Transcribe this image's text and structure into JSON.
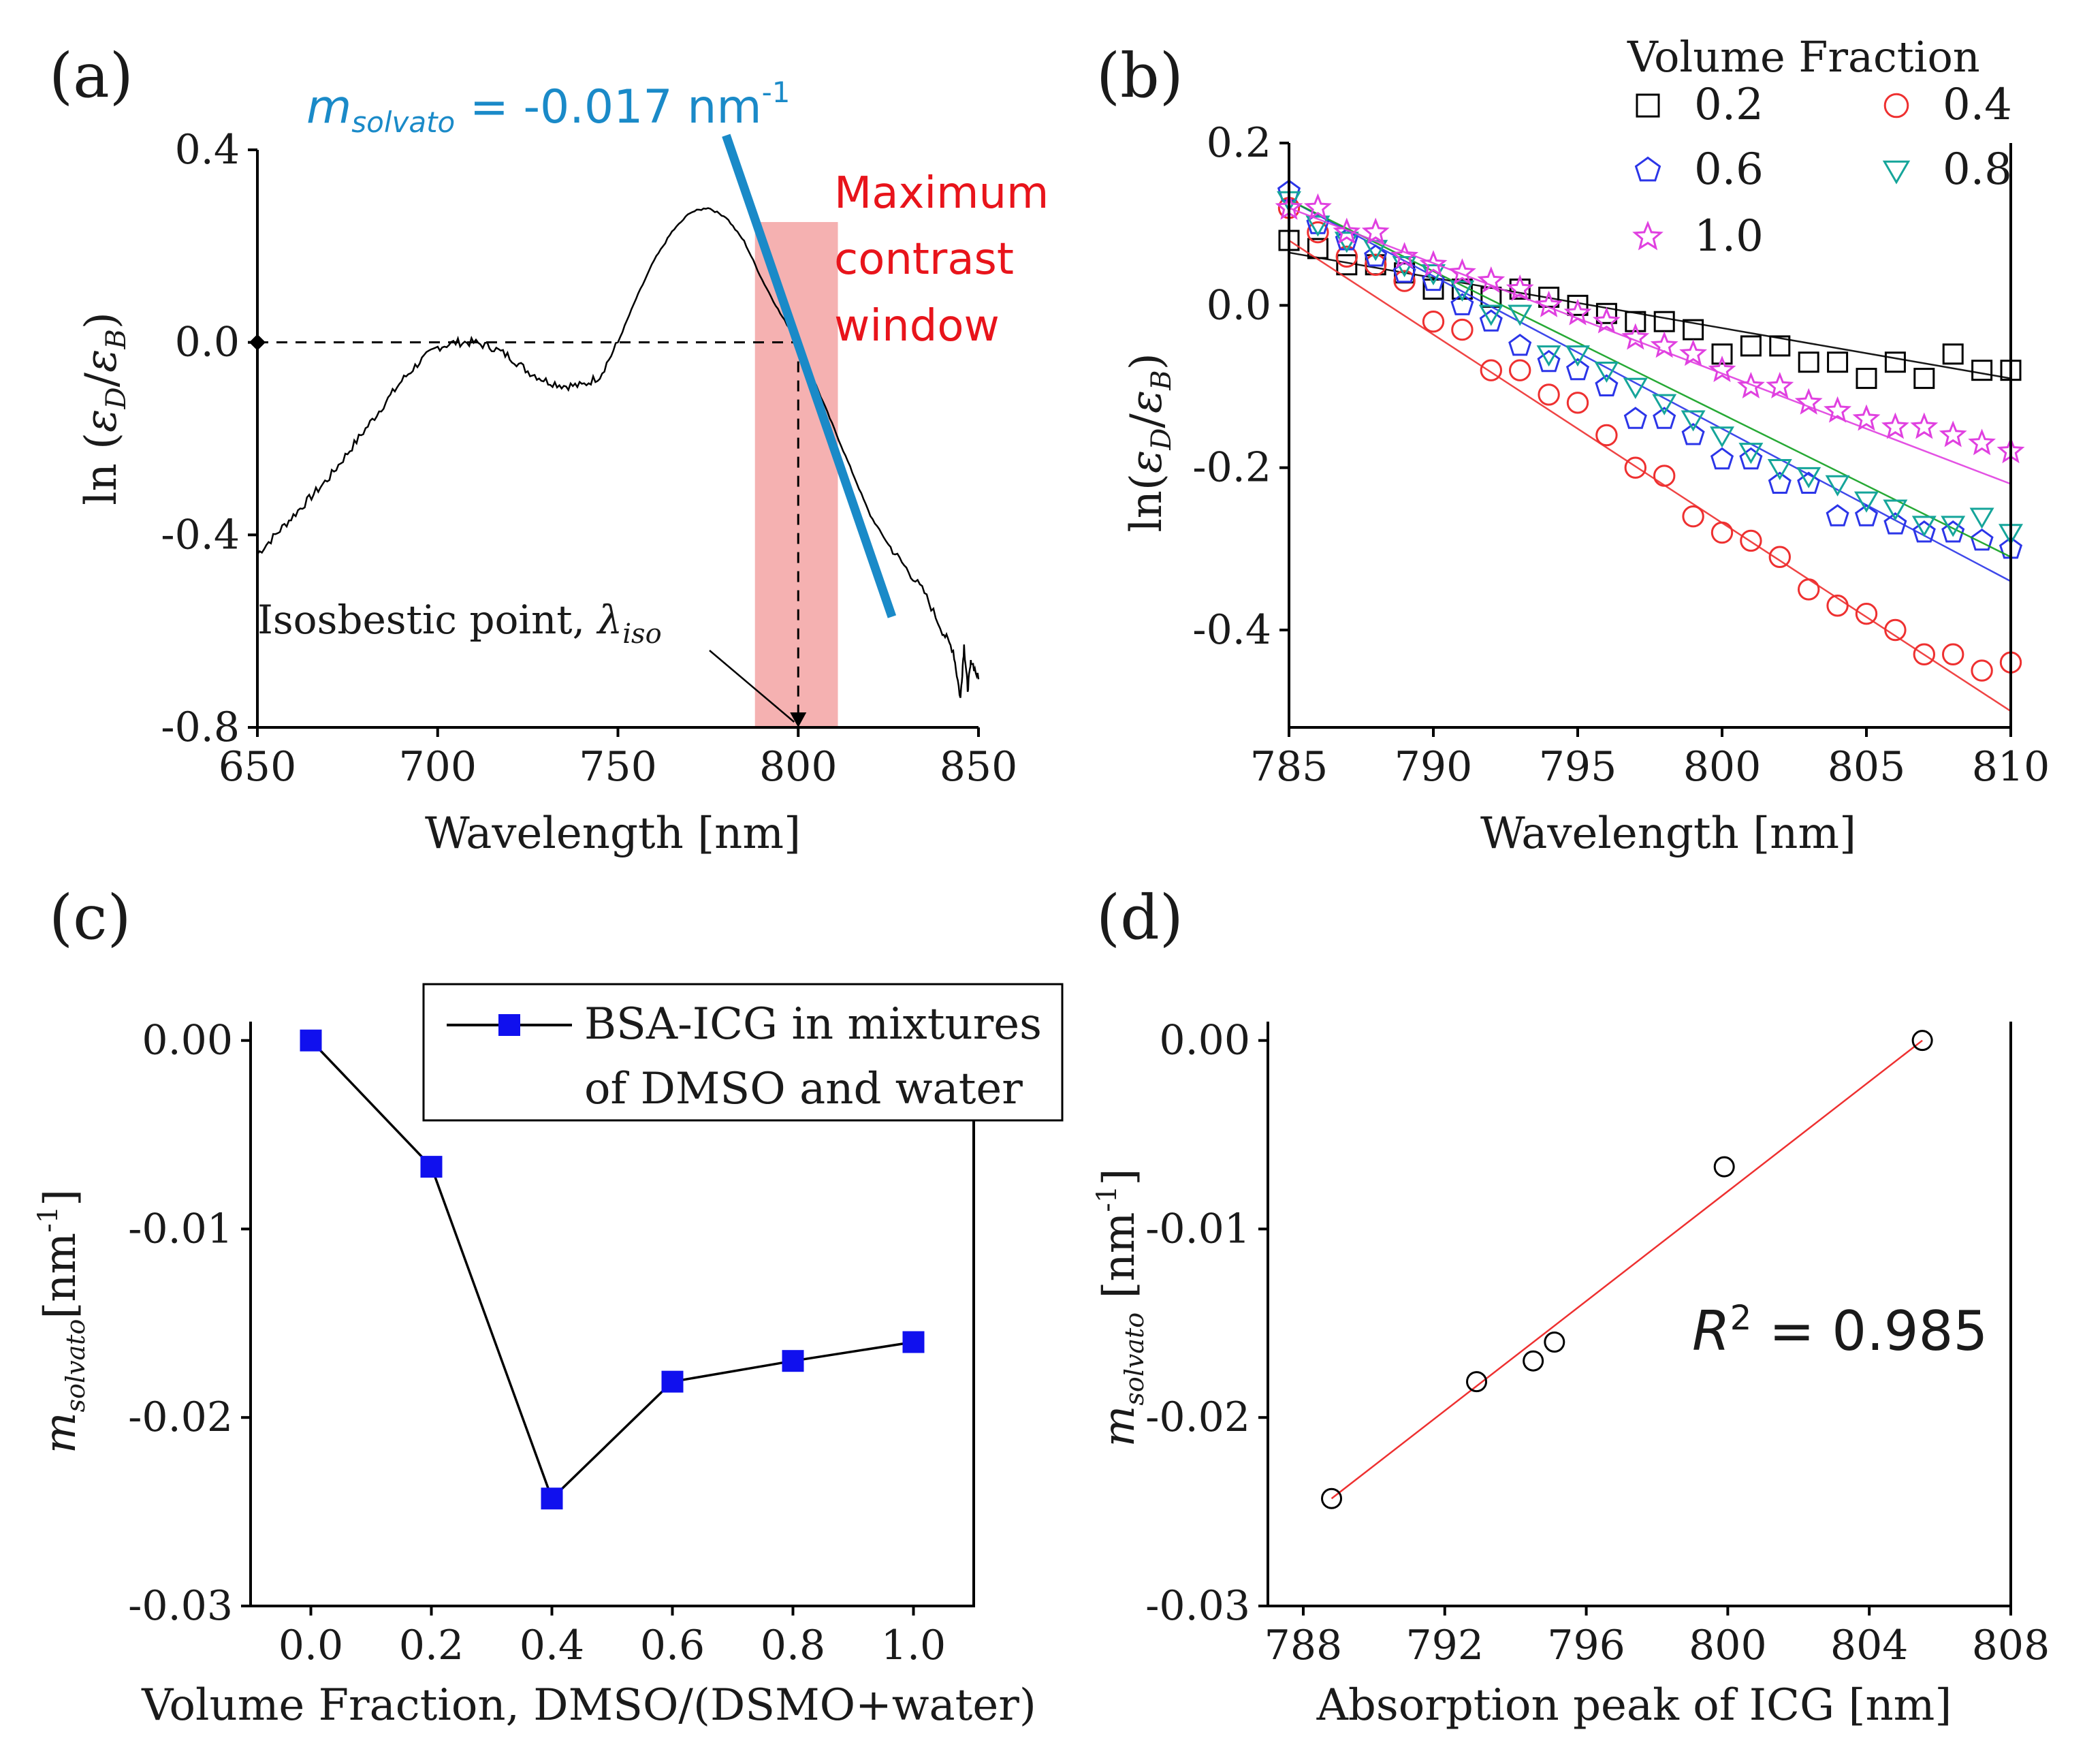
{
  "colors": {
    "axis": "#000000",
    "slope_line": "#1a8ac8",
    "window_fill": "#f3a3a3",
    "window_text": "#e8141b",
    "series_0_2": "#000000",
    "series_0_4": "#ee3030",
    "series_0_6": "#2b35e8",
    "series_0_8": "#15a59a",
    "series_1_0": "#e040e0",
    "fit_0_6": "#2b35e8",
    "fit_0_8": "#10a020",
    "marker_c": "#1010ee",
    "fit_d": "#ee3030"
  },
  "chart_data": [
    {
      "panel": "(a)",
      "type": "line",
      "xlabel": "Wavelength [nm]",
      "ylabel_main": "ln (",
      "ylabel_num": "ε",
      "ylabel_num_sub": "D",
      "ylabel_sep": "/",
      "ylabel_den": "ε",
      "ylabel_den_sub": "B",
      "ylabel_end": ")",
      "xlim": [
        650,
        850
      ],
      "ylim": [
        -0.8,
        0.4
      ],
      "xticks": [
        650,
        700,
        750,
        800,
        850
      ],
      "xtick_labels": [
        "650",
        "700",
        "750",
        "800",
        "850"
      ],
      "yticks": [
        -0.8,
        -0.4,
        0.0,
        0.4
      ],
      "ytick_labels": [
        "-0.8",
        "-0.4",
        "0.0",
        "0.4"
      ],
      "curve": {
        "x": [
          650,
          655,
          660,
          665,
          670,
          675,
          680,
          685,
          690,
          695,
          700,
          705,
          710,
          715,
          720,
          725,
          730,
          735,
          740,
          745,
          750,
          755,
          760,
          765,
          770,
          775,
          780,
          785,
          790,
          795,
          800,
          805,
          810,
          815,
          820,
          825,
          830,
          835,
          840,
          843,
          845,
          846,
          847,
          848,
          850
        ],
        "y": [
          -0.44,
          -0.4,
          -0.36,
          -0.32,
          -0.28,
          -0.23,
          -0.18,
          -0.13,
          -0.08,
          -0.04,
          -0.01,
          0.0,
          0.0,
          -0.01,
          -0.03,
          -0.06,
          -0.08,
          -0.09,
          -0.09,
          -0.07,
          0.0,
          0.09,
          0.17,
          0.23,
          0.27,
          0.28,
          0.26,
          0.21,
          0.13,
          0.06,
          0.0,
          -0.09,
          -0.18,
          -0.27,
          -0.36,
          -0.42,
          -0.47,
          -0.52,
          -0.6,
          -0.64,
          -0.74,
          -0.63,
          -0.72,
          -0.66,
          -0.7
        ]
      },
      "slope_line": {
        "x": [
          780,
          826
        ],
        "y": [
          0.43,
          -0.57
        ]
      },
      "slope_label_m": "m",
      "slope_label_sub": "solvato",
      "slope_label_value": " = -0.017 nm",
      "slope_label_exp": "-1",
      "window": {
        "x": [
          788,
          811
        ],
        "y": [
          -0.8,
          0.25
        ]
      },
      "window_label": [
        "Maximum",
        "contrast",
        "window"
      ],
      "isosbestic_x": 800,
      "isosbestic_label": "Isosbestic  point, ",
      "isosbestic_symbol": "λ",
      "isosbestic_sub": "iso"
    },
    {
      "panel": "(b)",
      "type": "scatter",
      "xlabel": "Wavelength [nm]",
      "ylabel_main": "ln(",
      "ylabel_num": "ε",
      "ylabel_num_sub": "D",
      "ylabel_sep": "/",
      "ylabel_den": "ε",
      "ylabel_den_sub": "B",
      "ylabel_end": ")",
      "xlim": [
        785,
        810
      ],
      "ylim": [
        -0.52,
        0.2
      ],
      "xticks": [
        785,
        790,
        795,
        800,
        805,
        810
      ],
      "xtick_labels": [
        "785",
        "790",
        "795",
        "800",
        "805",
        "810"
      ],
      "yticks": [
        -0.4,
        -0.2,
        0.0,
        0.2
      ],
      "ytick_labels": [
        "-0.4",
        "-0.2",
        "0.0",
        "0.2"
      ],
      "legend_title": "Volume Fraction",
      "series": [
        {
          "name": "0.2",
          "marker": "square",
          "fit": [
            0.065,
            -0.09
          ],
          "x": [
            785,
            786,
            787,
            788,
            789,
            790,
            791,
            792,
            793,
            794,
            795,
            796,
            797,
            798,
            799,
            800,
            801,
            802,
            803,
            804,
            805,
            806,
            807,
            808,
            809,
            810
          ],
          "y": [
            0.08,
            0.07,
            0.05,
            0.05,
            0.04,
            0.02,
            0.02,
            0.01,
            0.02,
            0.01,
            0.0,
            -0.01,
            -0.02,
            -0.02,
            -0.03,
            -0.06,
            -0.05,
            -0.05,
            -0.07,
            -0.07,
            -0.09,
            -0.07,
            -0.09,
            -0.06,
            -0.08,
            -0.08
          ]
        },
        {
          "name": "0.4",
          "marker": "circle",
          "fit": [
            0.08,
            -0.5
          ],
          "x": [
            785,
            786,
            787,
            788,
            789,
            790,
            791,
            792,
            793,
            794,
            795,
            796,
            797,
            798,
            799,
            800,
            801,
            802,
            803,
            804,
            805,
            806,
            807,
            808,
            809,
            810
          ],
          "y": [
            0.12,
            0.09,
            0.06,
            0.05,
            0.03,
            -0.02,
            -0.03,
            -0.08,
            -0.08,
            -0.11,
            -0.12,
            -0.16,
            -0.2,
            -0.21,
            -0.26,
            -0.28,
            -0.29,
            -0.31,
            -0.35,
            -0.37,
            -0.38,
            -0.4,
            -0.43,
            -0.43,
            -0.45,
            -0.44
          ]
        },
        {
          "name": "0.6",
          "marker": "pentagon",
          "fit": [
            0.13,
            -0.34
          ],
          "x": [
            785,
            786,
            787,
            788,
            789,
            790,
            791,
            792,
            793,
            794,
            795,
            796,
            797,
            798,
            799,
            800,
            801,
            802,
            803,
            804,
            805,
            806,
            807,
            808,
            809,
            810
          ],
          "y": [
            0.14,
            0.1,
            0.08,
            0.06,
            0.04,
            0.03,
            0.0,
            -0.02,
            -0.05,
            -0.07,
            -0.08,
            -0.1,
            -0.14,
            -0.14,
            -0.16,
            -0.19,
            -0.19,
            -0.22,
            -0.22,
            -0.26,
            -0.26,
            -0.27,
            -0.28,
            -0.28,
            -0.29,
            -0.3
          ]
        },
        {
          "name": "0.8",
          "marker": "triangle",
          "fit": [
            0.13,
            -0.31
          ],
          "x": [
            785,
            786,
            787,
            788,
            789,
            790,
            791,
            792,
            793,
            794,
            795,
            796,
            797,
            798,
            799,
            800,
            801,
            802,
            803,
            804,
            805,
            806,
            807,
            808,
            809,
            810
          ],
          "y": [
            0.13,
            0.1,
            0.08,
            0.07,
            0.05,
            0.04,
            0.02,
            -0.01,
            -0.01,
            -0.06,
            -0.06,
            -0.08,
            -0.1,
            -0.12,
            -0.14,
            -0.16,
            -0.18,
            -0.2,
            -0.21,
            -0.22,
            -0.24,
            -0.25,
            -0.27,
            -0.27,
            -0.26,
            -0.28
          ]
        },
        {
          "name": "1.0",
          "marker": "star",
          "fit": [
            0.12,
            -0.22
          ],
          "x": [
            785,
            786,
            787,
            788,
            789,
            790,
            791,
            792,
            793,
            794,
            795,
            796,
            797,
            798,
            799,
            800,
            801,
            802,
            803,
            804,
            805,
            806,
            807,
            808,
            809,
            810
          ],
          "y": [
            0.12,
            0.12,
            0.09,
            0.09,
            0.06,
            0.05,
            0.04,
            0.03,
            0.02,
            0.0,
            -0.01,
            -0.02,
            -0.04,
            -0.05,
            -0.06,
            -0.08,
            -0.1,
            -0.1,
            -0.12,
            -0.13,
            -0.14,
            -0.15,
            -0.15,
            -0.16,
            -0.17,
            -0.18
          ]
        }
      ]
    },
    {
      "panel": "(c)",
      "type": "line",
      "xlabel": "Volume Fraction, DMSO/(DSMO+water)",
      "ylabel_m": "m",
      "ylabel_sub": "solvato",
      "ylabel_unit": "[nm",
      "ylabel_exp": "-1",
      "ylabel_close": "]",
      "xlim": [
        -0.1,
        1.1
      ],
      "ylim": [
        -0.03,
        0.001
      ],
      "xticks": [
        0.0,
        0.2,
        0.4,
        0.6,
        0.8,
        1.0
      ],
      "xtick_labels": [
        "0.0",
        "0.2",
        "0.4",
        "0.6",
        "0.8",
        "1.0"
      ],
      "yticks": [
        -0.03,
        -0.02,
        -0.01,
        0.0
      ],
      "ytick_labels": [
        "-0.03",
        "-0.02",
        "-0.01",
        "0.00"
      ],
      "legend": [
        "BSA-ICG in mixtures",
        "of DMSO and water"
      ],
      "x": [
        0.0,
        0.2,
        0.4,
        0.6,
        0.8,
        1.0
      ],
      "y": [
        0.0,
        -0.0067,
        -0.0243,
        -0.0181,
        -0.017,
        -0.016
      ]
    },
    {
      "panel": "(d)",
      "type": "scatter",
      "xlabel": "Absorption peak of ICG [nm]",
      "ylabel_m": "m",
      "ylabel_sub": "solvato",
      "ylabel_unit": " [nm",
      "ylabel_exp": "-1",
      "ylabel_close": "]",
      "xlim": [
        787,
        808
      ],
      "ylim": [
        -0.03,
        0.001
      ],
      "xticks": [
        788,
        792,
        796,
        800,
        804,
        808
      ],
      "xtick_labels": [
        "788",
        "792",
        "796",
        "800",
        "804",
        "808"
      ],
      "yticks": [
        -0.03,
        -0.02,
        -0.01,
        0.0
      ],
      "ytick_labels": [
        "-0.03",
        "-0.02",
        "-0.01",
        "0.00"
      ],
      "x": [
        788.8,
        792.9,
        794.5,
        795.1,
        799.9,
        805.5
      ],
      "y": [
        -0.0243,
        -0.0181,
        -0.017,
        -0.016,
        -0.0067,
        0.0
      ],
      "fit": {
        "x": [
          788.8,
          805.5
        ],
        "y": [
          -0.0243,
          0.0
        ]
      },
      "r2_label": "R",
      "r2_exp": "2",
      "r2_value": " = 0.985"
    }
  ]
}
